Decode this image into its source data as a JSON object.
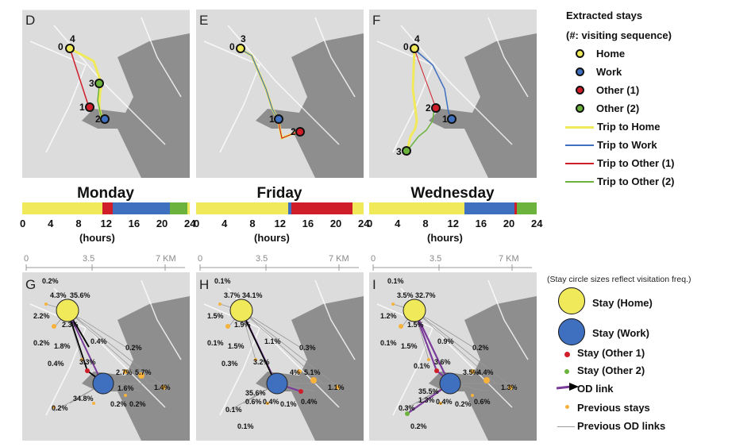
{
  "panels_top": [
    {
      "letter": "D",
      "day": "Monday"
    },
    {
      "letter": "E",
      "day": "Friday"
    },
    {
      "letter": "F",
      "day": "Wednesday"
    }
  ],
  "panels_bottom": [
    {
      "letter": "G"
    },
    {
      "letter": "H"
    },
    {
      "letter": "I"
    }
  ],
  "seq": {
    "D": {
      "home_a": "4",
      "home_b": "0",
      "other2": "3",
      "other1": "1",
      "work": "2"
    },
    "E": {
      "home_a": "3",
      "home_b": "0",
      "work": "1",
      "other1": "2"
    },
    "F": {
      "home_a": "4",
      "home_b": "0",
      "other1": "2",
      "work": "1",
      "other2": "3"
    }
  },
  "timebars": [
    {
      "segments": [
        {
          "color": "#f0e95a",
          "hours": 11.5
        },
        {
          "color": "#d01d2a",
          "hours": 1.5
        },
        {
          "color": "#3f6fbf",
          "hours": 8.2
        },
        {
          "color": "#6bb33c",
          "hours": 2.5
        },
        {
          "color": "#f0e95a",
          "hours": 0.3
        }
      ]
    },
    {
      "segments": [
        {
          "color": "#f0e95a",
          "hours": 13.2
        },
        {
          "color": "#3f6fbf",
          "hours": 0.5
        },
        {
          "color": "#d01d2a",
          "hours": 8.7
        },
        {
          "color": "#f0e95a",
          "hours": 1.6
        }
      ]
    },
    {
      "segments": [
        {
          "color": "#f0e95a",
          "hours": 13.7
        },
        {
          "color": "#3f6fbf",
          "hours": 7.1
        },
        {
          "color": "#d01d2a",
          "hours": 0.4
        },
        {
          "color": "#6bb33c",
          "hours": 2.8
        }
      ]
    }
  ],
  "ticks": [
    "0",
    "4",
    "8",
    "12",
    "16",
    "20",
    "24"
  ],
  "hours_label": "(hours)",
  "km_ticks": [
    "0",
    "3.5",
    "7 KM"
  ],
  "legend_top": {
    "title_line1": "Extracted stays",
    "title_line2": "(#: visiting sequence)",
    "items": [
      {
        "label": "Home",
        "color": "#f0e95a",
        "kind": "dot"
      },
      {
        "label": "Work",
        "color": "#3f6fbf",
        "kind": "dot"
      },
      {
        "label": "Other (1)",
        "color": "#d01d2a",
        "kind": "dot"
      },
      {
        "label": "Other (2)",
        "color": "#6bb33c",
        "kind": "dot"
      },
      {
        "label": "Trip to Home",
        "color": "#f0e95a",
        "kind": "line"
      },
      {
        "label": "Trip to Work",
        "color": "#3f6fbf",
        "kind": "line"
      },
      {
        "label": "Trip to Other (1)",
        "color": "#d01d2a",
        "kind": "line"
      },
      {
        "label": "Trip to Other (2)",
        "color": "#6bb33c",
        "kind": "line"
      }
    ]
  },
  "legend_bottom": {
    "note": "(Stay circle sizes reflect visitation freq.)",
    "items": [
      {
        "label": "Stay (Home)"
      },
      {
        "label": "Stay (Work)"
      },
      {
        "label": "Stay (Other 1)"
      },
      {
        "label": "Stay (Other 2)"
      },
      {
        "label": "OD link"
      },
      {
        "label": "Previous stays"
      },
      {
        "label": "Previous OD links"
      }
    ]
  },
  "map_labels": {
    "G": [
      "0.2%",
      "4.3%",
      "35.6%",
      "2.2%",
      "2.3%",
      "0.4%",
      "0.2%",
      "1.8%",
      "0.4%",
      "0.2%",
      "3.3%",
      "2.7%",
      "5.7%",
      "1.6%",
      "1.4%",
      "34.8%",
      "0.2%",
      "0.2%",
      "0.2%"
    ],
    "H": [
      "0.1%",
      "3.7%",
      "34.1%",
      "1.5%",
      "1.9%",
      "0.1%",
      "1.5%",
      "1.1%",
      "0.3%",
      "0.3%",
      "3.2%",
      "4%",
      "5.1%",
      "35.6%",
      "1.1%",
      "0.6%",
      "0.4%",
      "0.1%",
      "0.4%",
      "0.1%",
      "0.1%"
    ],
    "I": [
      "0.1%",
      "3.5%",
      "32.7%",
      "1.2%",
      "1.5%",
      "0.1%",
      "1.5%",
      "0.9%",
      "0.2%",
      "0.1%",
      "3.6%",
      "3.5%",
      "4.4%",
      "35.5%",
      "1.3%",
      "1.3%",
      "0.4%",
      "0.2%",
      "0.6%",
      "0.3%",
      "0.2%"
    ]
  }
}
